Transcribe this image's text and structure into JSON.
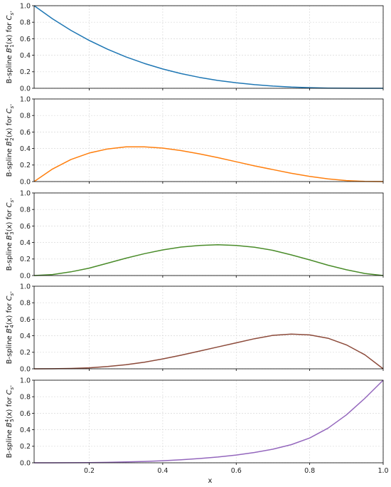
{
  "chart_data": [
    {
      "type": "line",
      "ylabel_prefix": "B-spline ",
      "ylabel_sup": "4",
      "ylabel_sub": "1",
      "ylabel_suffix": "(x) for ",
      "ylabel_cs_sub": "s",
      "ylabel_tail": ".",
      "xlim": [
        0.05,
        1.0
      ],
      "ylim": [
        0,
        1.0
      ],
      "yticks": [
        "0.0",
        "0.2",
        "0.4",
        "0.6",
        "0.8",
        "1.0"
      ],
      "color": "#1f77b4",
      "grid": true,
      "series": [
        {
          "x": [
            0.05,
            0.1,
            0.15,
            0.2,
            0.25,
            0.3,
            0.35,
            0.4,
            0.45,
            0.5,
            0.55,
            0.6,
            0.65,
            0.7,
            0.75,
            0.8,
            0.85,
            0.9,
            0.95,
            1.0
          ],
          "y": [
            1.0,
            0.841,
            0.702,
            0.579,
            0.472,
            0.38,
            0.301,
            0.234,
            0.178,
            0.132,
            0.095,
            0.066,
            0.044,
            0.027,
            0.015,
            0.008,
            0.003,
            0.001,
            0.0,
            0.0
          ]
        }
      ]
    },
    {
      "type": "line",
      "ylabel_prefix": "B-spline ",
      "ylabel_sup": "4",
      "ylabel_sub": "2",
      "ylabel_suffix": "(x) for ",
      "ylabel_cs_sub": "s",
      "ylabel_tail": ".",
      "xlim": [
        0.05,
        1.0
      ],
      "ylim": [
        0,
        1.0
      ],
      "yticks": [
        "0.0",
        "0.2",
        "0.4",
        "0.6",
        "0.8",
        "1.0"
      ],
      "color": "#ff7f0e",
      "grid": true,
      "series": [
        {
          "x": [
            0.05,
            0.1,
            0.15,
            0.2,
            0.25,
            0.3,
            0.35,
            0.4,
            0.45,
            0.5,
            0.55,
            0.6,
            0.65,
            0.7,
            0.75,
            0.8,
            0.85,
            0.9,
            0.95,
            1.0
          ],
          "y": [
            0.0,
            0.152,
            0.266,
            0.346,
            0.395,
            0.42,
            0.42,
            0.405,
            0.375,
            0.335,
            0.29,
            0.24,
            0.19,
            0.145,
            0.1,
            0.062,
            0.033,
            0.012,
            0.002,
            0.0
          ]
        }
      ]
    },
    {
      "type": "line",
      "ylabel_prefix": "B-spline ",
      "ylabel_sup": "4",
      "ylabel_sub": "3",
      "ylabel_suffix": "(x) for ",
      "ylabel_cs_sub": "s",
      "ylabel_tail": ".",
      "xlim": [
        0.05,
        1.0
      ],
      "ylim": [
        0,
        1.0
      ],
      "yticks": [
        "0.0",
        "0.2",
        "0.4",
        "0.6",
        "0.8",
        "1.0"
      ],
      "color": "#4a8c2a",
      "grid": true,
      "series": [
        {
          "x": [
            0.05,
            0.1,
            0.15,
            0.2,
            0.25,
            0.3,
            0.35,
            0.4,
            0.45,
            0.5,
            0.55,
            0.6,
            0.65,
            0.7,
            0.75,
            0.8,
            0.85,
            0.9,
            0.95,
            1.0
          ],
          "y": [
            0.0,
            0.012,
            0.045,
            0.09,
            0.15,
            0.21,
            0.265,
            0.31,
            0.345,
            0.365,
            0.372,
            0.365,
            0.342,
            0.305,
            0.25,
            0.19,
            0.125,
            0.07,
            0.025,
            0.0
          ]
        }
      ]
    },
    {
      "type": "line",
      "ylabel_prefix": "B-spline ",
      "ylabel_sup": "4",
      "ylabel_sub": "4",
      "ylabel_suffix": "(x) for ",
      "ylabel_cs_sub": "s",
      "ylabel_tail": ".",
      "xlim": [
        0.05,
        1.0
      ],
      "ylim": [
        0,
        1.0
      ],
      "yticks": [
        "0.0",
        "0.2",
        "0.4",
        "0.6",
        "0.8",
        "1.0"
      ],
      "color": "#8c4a3a",
      "grid": true,
      "series": [
        {
          "x": [
            0.05,
            0.1,
            0.15,
            0.2,
            0.25,
            0.3,
            0.35,
            0.4,
            0.45,
            0.5,
            0.55,
            0.6,
            0.65,
            0.7,
            0.75,
            0.8,
            0.85,
            0.9,
            0.95,
            1.0
          ],
          "y": [
            0.0,
            0.001,
            0.004,
            0.012,
            0.028,
            0.05,
            0.08,
            0.12,
            0.165,
            0.215,
            0.265,
            0.315,
            0.365,
            0.405,
            0.42,
            0.41,
            0.37,
            0.29,
            0.17,
            0.0
          ]
        }
      ]
    },
    {
      "type": "line",
      "ylabel_prefix": "B-spline ",
      "ylabel_sup": "4",
      "ylabel_sub": "5",
      "ylabel_suffix": "(x) for ",
      "ylabel_cs_sub": "s",
      "ylabel_tail": ".",
      "xlim": [
        0.05,
        1.0
      ],
      "ylim": [
        0,
        1.0
      ],
      "yticks": [
        "0.0",
        "0.2",
        "0.4",
        "0.6",
        "0.8",
        "1.0"
      ],
      "xticks": [
        "0.2",
        "0.4",
        "0.6",
        "0.8",
        "1.0"
      ],
      "xlabel": "x",
      "color": "#9467bd",
      "grid": true,
      "series": [
        {
          "x": [
            0.05,
            0.1,
            0.15,
            0.2,
            0.25,
            0.3,
            0.35,
            0.4,
            0.45,
            0.5,
            0.55,
            0.6,
            0.65,
            0.7,
            0.75,
            0.8,
            0.85,
            0.9,
            0.95,
            1.0
          ],
          "y": [
            0.0,
            0.0,
            0.001,
            0.002,
            0.005,
            0.01,
            0.016,
            0.025,
            0.036,
            0.052,
            0.07,
            0.094,
            0.125,
            0.165,
            0.22,
            0.3,
            0.42,
            0.58,
            0.78,
            1.0
          ]
        }
      ]
    }
  ]
}
